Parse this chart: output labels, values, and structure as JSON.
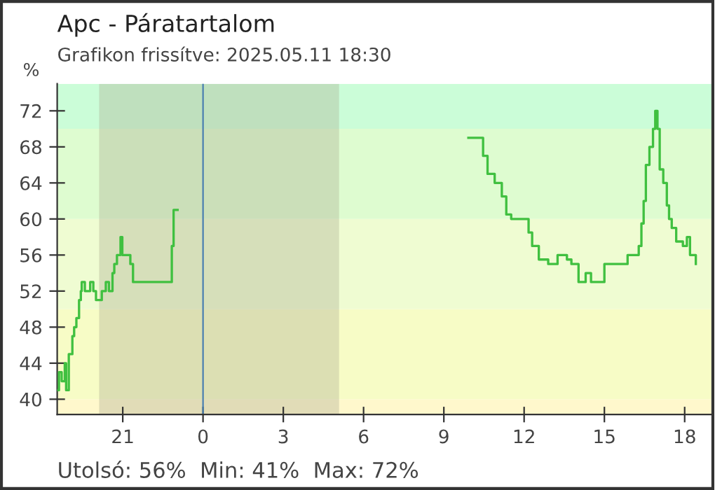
{
  "chart_data": {
    "type": "step",
    "title": "Apc - Páratartalom",
    "subtitle": "Grafikon frissítve: 2025.05.11 18:30",
    "ylabel": "%",
    "annotations": [
      "Utolsó: 56%  Min: 41%  Max: 72%"
    ],
    "x": [
      "2025-05-10T18:33",
      "2025-05-10T18:37",
      "2025-05-10T18:43",
      "2025-05-10T18:50",
      "2025-05-10T18:53",
      "2025-05-10T18:59",
      "2025-05-10T19:07",
      "2025-05-10T19:11",
      "2025-05-10T19:16",
      "2025-05-10T19:22",
      "2025-05-10T19:26",
      "2025-05-10T19:28",
      "2025-05-10T19:35",
      "2025-05-10T19:47",
      "2025-05-10T19:54",
      "2025-05-10T20:00",
      "2025-05-10T20:13",
      "2025-05-10T20:22",
      "2025-05-10T20:29",
      "2025-05-10T20:37",
      "2025-05-10T20:41",
      "2025-05-10T20:47",
      "2025-05-10T20:55",
      "2025-05-10T20:59",
      "2025-05-10T21:12",
      "2025-05-10T21:17",
      "2025-05-10T21:23",
      "2025-05-10T22:09",
      "2025-05-10T22:49",
      "2025-05-10T22:50",
      "2025-05-10T22:54",
      "2025-05-10T23:00",
      "2025-05-10T23:03",
      "2025-05-11T09:55",
      "2025-05-11T10:23",
      "2025-05-11T10:28",
      "2025-05-11T10:38",
      "2025-05-11T10:54",
      "2025-05-11T11:10",
      "2025-05-11T11:20",
      "2025-05-11T11:31",
      "2025-05-11T12:02",
      "2025-05-11T12:10",
      "2025-05-11T12:18",
      "2025-05-11T12:28",
      "2025-05-11T12:33",
      "2025-05-11T12:54",
      "2025-05-11T13:15",
      "2025-05-11T13:36",
      "2025-05-11T13:46",
      "2025-05-11T14:02",
      "2025-05-11T14:18",
      "2025-05-11T14:30",
      "2025-05-11T14:44",
      "2025-05-11T15:00",
      "2025-05-11T15:41",
      "2025-05-11T15:52",
      "2025-05-11T16:12",
      "2025-05-11T16:17",
      "2025-05-11T16:23",
      "2025-05-11T16:28",
      "2025-05-11T16:33",
      "2025-05-11T16:41",
      "2025-05-11T16:49",
      "2025-05-11T16:54",
      "2025-05-11T16:59",
      "2025-05-11T17:04",
      "2025-05-11T17:12",
      "2025-05-11T17:20",
      "2025-05-11T17:25",
      "2025-05-11T17:31",
      "2025-05-11T17:41",
      "2025-05-11T17:56",
      "2025-05-11T18:05",
      "2025-05-11T18:12",
      "2025-05-11T18:25"
    ],
    "series": [
      {
        "color": "#40c040",
        "values": [
          41,
          43,
          42,
          44,
          41,
          45,
          47,
          48,
          49,
          51,
          52,
          53,
          52,
          53,
          52,
          51,
          52,
          53,
          52,
          54,
          55,
          56,
          58,
          56,
          56,
          55,
          53,
          53,
          53,
          57,
          61,
          61,
          null,
          69,
          69,
          67,
          65,
          64,
          62.5,
          60.5,
          60,
          60,
          58.5,
          57,
          57,
          55.5,
          55,
          56,
          55.5,
          55,
          53,
          54,
          53,
          53,
          55,
          55,
          56,
          56,
          57,
          59.5,
          62,
          66,
          68,
          70,
          72,
          70,
          65.5,
          64,
          61.5,
          60,
          59,
          57.5,
          57,
          58,
          56,
          55
        ]
      }
    ],
    "xlim": [
      "2025-05-10T18:33",
      "2025-05-11T19:00"
    ],
    "ylim": [
      38.3,
      75
    ],
    "xticks": [
      {
        "value": "2025-05-10T21:00",
        "label": "21"
      },
      {
        "value": "2025-05-11T00:00",
        "label": "0"
      },
      {
        "value": "2025-05-11T03:00",
        "label": "3"
      },
      {
        "value": "2025-05-11T06:00",
        "label": "6"
      },
      {
        "value": "2025-05-11T09:00",
        "label": "9"
      },
      {
        "value": "2025-05-11T12:00",
        "label": "12"
      },
      {
        "value": "2025-05-11T15:00",
        "label": "15"
      },
      {
        "value": "2025-05-11T18:00",
        "label": "18"
      }
    ],
    "yticks": [
      40,
      44,
      48,
      52,
      56,
      60,
      64,
      68,
      72
    ],
    "bands": [
      {
        "axis": "y",
        "from": 38.3,
        "to": 40,
        "color": "#fff8cc"
      },
      {
        "axis": "y",
        "from": 40,
        "to": 50,
        "color": "#f7fcc6"
      },
      {
        "axis": "y",
        "from": 50,
        "to": 60,
        "color": "#effcd2"
      },
      {
        "axis": "y",
        "from": 60,
        "to": 70,
        "color": "#defcd0"
      },
      {
        "axis": "y",
        "from": 70,
        "to": 75,
        "color": "#cbfdd8"
      },
      {
        "axis": "x",
        "from": "2025-05-10T20:07",
        "to": "2025-05-11T05:05",
        "color": "#a8a890"
      }
    ],
    "ref_lines": [
      {
        "axis": "x",
        "value": "2025-05-11T00:00",
        "color": "#4a7fb0"
      }
    ],
    "grid": false,
    "legend": false
  }
}
